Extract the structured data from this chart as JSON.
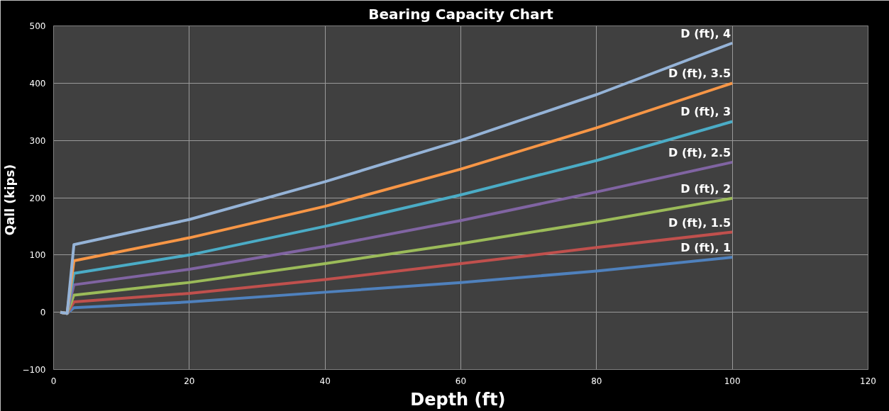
{
  "chart_data": {
    "type": "line",
    "title": "Bearing Capacity Chart",
    "xlabel": "Depth  (ft)",
    "ylabel": "Qall  (kips)",
    "x": [
      1,
      2,
      3,
      20,
      40,
      60,
      80,
      100
    ],
    "series": [
      {
        "name": "D (ft), 1",
        "color": "#4f81bd",
        "values": [
          0,
          -2,
          8,
          18,
          35,
          52,
          72,
          96
        ]
      },
      {
        "name": "D (ft), 1.5",
        "color": "#c0504d",
        "values": [
          0,
          -2,
          18,
          33,
          57,
          85,
          113,
          140
        ]
      },
      {
        "name": "D (ft), 2",
        "color": "#9bbb59",
        "values": [
          0,
          -2,
          30,
          52,
          85,
          120,
          158,
          199
        ]
      },
      {
        "name": "D (ft), 2.5",
        "color": "#8064a2",
        "values": [
          0,
          -2,
          48,
          75,
          115,
          160,
          210,
          262
        ]
      },
      {
        "name": "D (ft), 3",
        "color": "#4bacc6",
        "values": [
          0,
          -2,
          68,
          100,
          150,
          205,
          265,
          333
        ]
      },
      {
        "name": "D (ft), 3.5",
        "color": "#f79646",
        "values": [
          0,
          -2,
          90,
          130,
          185,
          250,
          322,
          400
        ]
      },
      {
        "name": "D (ft), 4",
        "color": "#95b3d7",
        "values": [
          0,
          -2,
          118,
          162,
          228,
          300,
          380,
          470
        ]
      }
    ],
    "xlim": [
      0,
      120
    ],
    "xticks": [
      0,
      20,
      40,
      60,
      80,
      100,
      120
    ],
    "ylim": [
      -100,
      500
    ],
    "yticks": [
      -100,
      0,
      100,
      200,
      300,
      400,
      500
    ],
    "grid": true,
    "marker": "none",
    "line_style": "solid"
  }
}
